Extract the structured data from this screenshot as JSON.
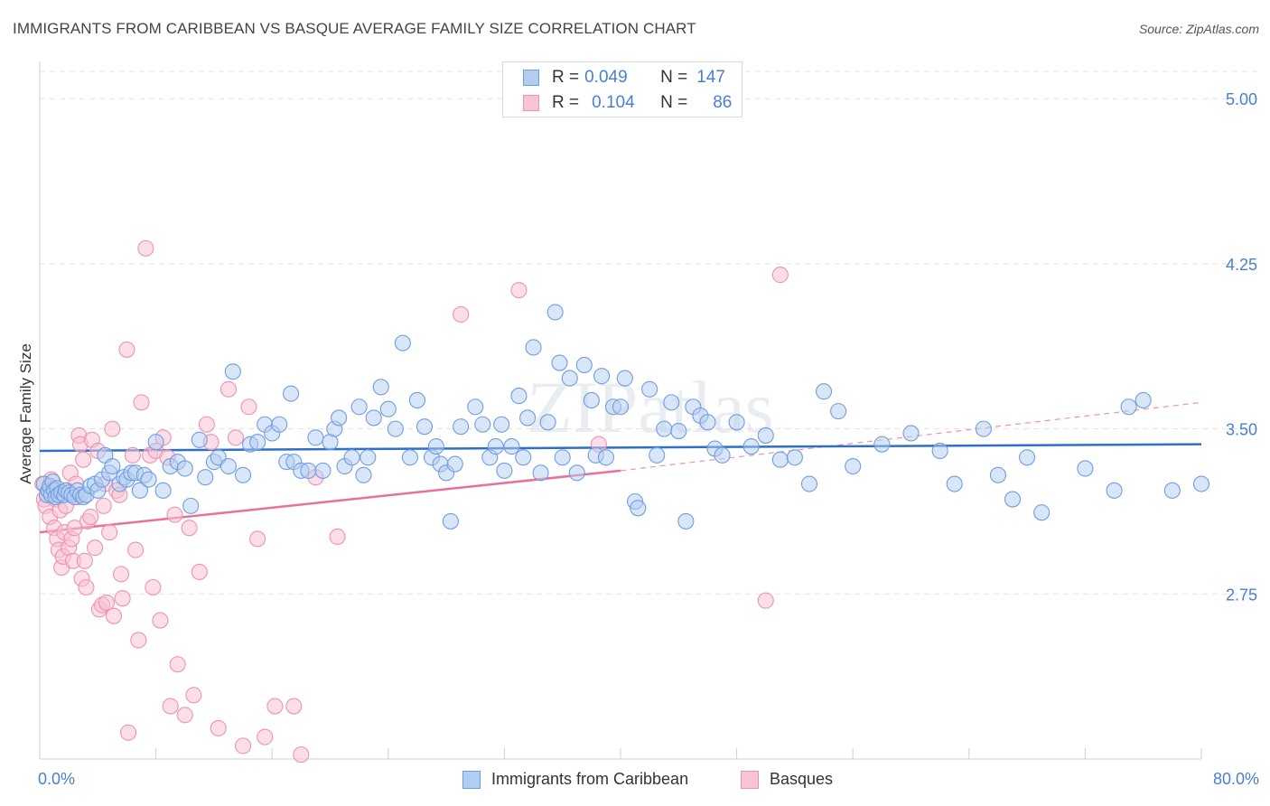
{
  "header": {
    "title": "IMMIGRANTS FROM CARIBBEAN VS BASQUE AVERAGE FAMILY SIZE CORRELATION CHART",
    "source": "Source: ZipAtlas.com"
  },
  "watermark": "ZIPatlas",
  "stats_legend": {
    "rows": [
      {
        "r_label": "R =",
        "r_value": "0.049",
        "n_label": "N =",
        "n_value": "147"
      },
      {
        "r_label": "R =",
        "r_value": "0.104",
        "n_label": "N =",
        "n_value": "86"
      }
    ]
  },
  "colors": {
    "blue_fill": "#b3cdf2",
    "blue_stroke": "#6f9ee0",
    "blue_line": "#2f6fcc",
    "pink_fill": "#f8c3d4",
    "pink_stroke": "#ee92b1",
    "pink_line": "#e8709a",
    "tick_label": "#4a7fd0",
    "grid": "#e3e3e3"
  },
  "chart_data": {
    "type": "scatter",
    "title": "IMMIGRANTS FROM CARIBBEAN VS BASQUE AVERAGE FAMILY SIZE CORRELATION CHART",
    "xlabel": "",
    "ylabel": "Average Family Size",
    "xlim": [
      0,
      80
    ],
    "ylim": [
      2.0,
      5.12
    ],
    "x_tick_labels": [
      "0.0%",
      "80.0%"
    ],
    "y_ticks": [
      2.75,
      3.5,
      4.25,
      5.0
    ],
    "y_tick_labels": [
      "2.75",
      "3.50",
      "4.25",
      "5.00"
    ],
    "grid": "horizontal dashed",
    "legend_position": "bottom-center",
    "series": [
      {
        "name": "Immigrants from Caribbean",
        "color": "#6f9ee0",
        "trend": {
          "x": [
            0,
            80
          ],
          "y": [
            3.4,
            3.43
          ]
        },
        "points": [
          [
            0.3,
            3.25
          ],
          [
            0.5,
            3.2
          ],
          [
            0.6,
            3.22
          ],
          [
            0.7,
            3.24
          ],
          [
            0.8,
            3.2
          ],
          [
            0.9,
            3.26
          ],
          [
            1.0,
            3.22
          ],
          [
            1.1,
            3.19
          ],
          [
            1.2,
            3.23
          ],
          [
            1.3,
            3.2
          ],
          [
            1.5,
            3.21
          ],
          [
            1.7,
            3.2
          ],
          [
            1.8,
            3.22
          ],
          [
            2.0,
            3.21
          ],
          [
            2.2,
            3.2
          ],
          [
            2.4,
            3.19
          ],
          [
            2.6,
            3.22
          ],
          [
            2.8,
            3.2
          ],
          [
            3.0,
            3.19
          ],
          [
            3.2,
            3.2
          ],
          [
            3.5,
            3.24
          ],
          [
            3.8,
            3.25
          ],
          [
            4.0,
            3.22
          ],
          [
            4.3,
            3.27
          ],
          [
            4.5,
            3.38
          ],
          [
            4.8,
            3.3
          ],
          [
            5.0,
            3.33
          ],
          [
            5.5,
            3.25
          ],
          [
            5.8,
            3.28
          ],
          [
            6.0,
            3.27
          ],
          [
            6.3,
            3.3
          ],
          [
            6.6,
            3.3
          ],
          [
            6.9,
            3.22
          ],
          [
            7.2,
            3.29
          ],
          [
            7.5,
            3.27
          ],
          [
            8.0,
            3.44
          ],
          [
            8.5,
            3.22
          ],
          [
            9.0,
            3.33
          ],
          [
            9.5,
            3.35
          ],
          [
            10.0,
            3.32
          ],
          [
            10.4,
            3.15
          ],
          [
            11.0,
            3.45
          ],
          [
            11.4,
            3.28
          ],
          [
            12.0,
            3.35
          ],
          [
            12.3,
            3.37
          ],
          [
            13.0,
            3.33
          ],
          [
            13.3,
            3.76
          ],
          [
            14.0,
            3.29
          ],
          [
            14.5,
            3.43
          ],
          [
            15.0,
            3.44
          ],
          [
            15.5,
            3.52
          ],
          [
            16.0,
            3.48
          ],
          [
            16.5,
            3.52
          ],
          [
            17.0,
            3.35
          ],
          [
            17.3,
            3.66
          ],
          [
            17.5,
            3.35
          ],
          [
            18.0,
            3.31
          ],
          [
            18.5,
            3.31
          ],
          [
            19.0,
            3.46
          ],
          [
            19.5,
            3.31
          ],
          [
            20.0,
            3.44
          ],
          [
            20.3,
            3.5
          ],
          [
            20.6,
            3.55
          ],
          [
            21.0,
            3.33
          ],
          [
            21.5,
            3.37
          ],
          [
            22.0,
            3.6
          ],
          [
            22.3,
            3.29
          ],
          [
            22.6,
            3.37
          ],
          [
            23.0,
            3.55
          ],
          [
            23.5,
            3.69
          ],
          [
            24.0,
            3.59
          ],
          [
            24.5,
            3.5
          ],
          [
            25.0,
            3.89
          ],
          [
            25.5,
            3.37
          ],
          [
            26.0,
            3.63
          ],
          [
            26.5,
            3.51
          ],
          [
            27.0,
            3.37
          ],
          [
            27.3,
            3.42
          ],
          [
            27.6,
            3.34
          ],
          [
            28.0,
            3.3
          ],
          [
            28.3,
            3.08
          ],
          [
            28.6,
            3.34
          ],
          [
            29.0,
            3.51
          ],
          [
            30.0,
            3.6
          ],
          [
            30.5,
            3.52
          ],
          [
            31.0,
            3.37
          ],
          [
            31.4,
            3.42
          ],
          [
            31.8,
            3.52
          ],
          [
            32.0,
            3.31
          ],
          [
            32.5,
            3.42
          ],
          [
            33.0,
            3.65
          ],
          [
            33.3,
            3.37
          ],
          [
            33.6,
            3.55
          ],
          [
            34.0,
            3.87
          ],
          [
            34.5,
            3.3
          ],
          [
            35.0,
            3.53
          ],
          [
            35.5,
            4.03
          ],
          [
            35.8,
            3.8
          ],
          [
            36.0,
            3.37
          ],
          [
            36.5,
            3.73
          ],
          [
            37.0,
            3.3
          ],
          [
            37.5,
            3.79
          ],
          [
            38.0,
            3.63
          ],
          [
            38.3,
            3.38
          ],
          [
            38.7,
            3.74
          ],
          [
            39.0,
            3.37
          ],
          [
            39.5,
            3.6
          ],
          [
            40.0,
            3.6
          ],
          [
            40.3,
            3.73
          ],
          [
            41.0,
            3.17
          ],
          [
            41.2,
            3.14
          ],
          [
            42.0,
            3.68
          ],
          [
            42.5,
            3.38
          ],
          [
            43.0,
            3.5
          ],
          [
            43.5,
            3.62
          ],
          [
            44.0,
            3.49
          ],
          [
            44.5,
            3.08
          ],
          [
            45.0,
            3.6
          ],
          [
            45.5,
            3.56
          ],
          [
            46.0,
            3.53
          ],
          [
            46.5,
            3.41
          ],
          [
            47.0,
            3.38
          ],
          [
            48.0,
            3.53
          ],
          [
            49.0,
            3.42
          ],
          [
            50.0,
            3.47
          ],
          [
            51.0,
            3.36
          ],
          [
            52.0,
            3.37
          ],
          [
            53.0,
            3.25
          ],
          [
            54.0,
            3.67
          ],
          [
            55.0,
            3.58
          ],
          [
            56.0,
            3.33
          ],
          [
            58.0,
            3.43
          ],
          [
            60.0,
            3.48
          ],
          [
            62.0,
            3.4
          ],
          [
            63.0,
            3.25
          ],
          [
            65.0,
            3.5
          ],
          [
            66.0,
            3.29
          ],
          [
            67.0,
            3.18
          ],
          [
            68.0,
            3.37
          ],
          [
            69.0,
            3.12
          ],
          [
            72.0,
            3.32
          ],
          [
            74.0,
            3.22
          ],
          [
            75.0,
            3.6
          ],
          [
            76.0,
            3.63
          ],
          [
            78.0,
            3.22
          ],
          [
            80.0,
            3.25
          ]
        ]
      },
      {
        "name": "Basques",
        "color": "#ee92b1",
        "trend": {
          "x": [
            0,
            40
          ],
          "y": [
            3.03,
            3.31
          ]
        },
        "trend_extension": {
          "x": [
            40,
            80
          ],
          "y": [
            3.31,
            3.62
          ]
        },
        "points": [
          [
            0.2,
            3.25
          ],
          [
            0.3,
            3.18
          ],
          [
            0.4,
            3.15
          ],
          [
            0.5,
            3.2
          ],
          [
            0.6,
            3.22
          ],
          [
            0.7,
            3.1
          ],
          [
            0.8,
            3.27
          ],
          [
            0.9,
            3.23
          ],
          [
            1.0,
            3.05
          ],
          [
            1.1,
            3.18
          ],
          [
            1.2,
            3.0
          ],
          [
            1.3,
            2.95
          ],
          [
            1.4,
            3.13
          ],
          [
            1.5,
            2.87
          ],
          [
            1.6,
            2.92
          ],
          [
            1.7,
            3.03
          ],
          [
            1.8,
            3.15
          ],
          [
            1.9,
            3.22
          ],
          [
            2.0,
            2.96
          ],
          [
            2.1,
            3.3
          ],
          [
            2.2,
            3.0
          ],
          [
            2.3,
            2.9
          ],
          [
            2.4,
            3.05
          ],
          [
            2.5,
            3.25
          ],
          [
            2.6,
            3.19
          ],
          [
            2.7,
            3.47
          ],
          [
            2.8,
            3.43
          ],
          [
            2.9,
            2.82
          ],
          [
            3.0,
            3.36
          ],
          [
            3.1,
            2.9
          ],
          [
            3.2,
            2.78
          ],
          [
            3.3,
            3.08
          ],
          [
            3.5,
            3.1
          ],
          [
            3.6,
            3.45
          ],
          [
            3.8,
            2.96
          ],
          [
            4.0,
            3.4
          ],
          [
            4.1,
            2.68
          ],
          [
            4.3,
            2.7
          ],
          [
            4.4,
            3.15
          ],
          [
            4.5,
            3.25
          ],
          [
            4.6,
            2.71
          ],
          [
            4.8,
            3.03
          ],
          [
            5.0,
            3.5
          ],
          [
            5.1,
            2.65
          ],
          [
            5.3,
            3.22
          ],
          [
            5.5,
            3.2
          ],
          [
            5.6,
            2.84
          ],
          [
            5.7,
            2.73
          ],
          [
            6.0,
            3.86
          ],
          [
            6.1,
            2.12
          ],
          [
            6.4,
            3.38
          ],
          [
            6.6,
            2.95
          ],
          [
            6.8,
            2.54
          ],
          [
            7.0,
            3.62
          ],
          [
            7.3,
            4.32
          ],
          [
            7.6,
            3.38
          ],
          [
            7.8,
            2.78
          ],
          [
            8.0,
            3.4
          ],
          [
            8.3,
            2.63
          ],
          [
            8.5,
            3.46
          ],
          [
            8.8,
            3.37
          ],
          [
            9.0,
            2.24
          ],
          [
            9.3,
            3.11
          ],
          [
            9.5,
            2.43
          ],
          [
            10.0,
            2.2
          ],
          [
            10.3,
            3.05
          ],
          [
            10.6,
            2.29
          ],
          [
            11.0,
            2.85
          ],
          [
            11.5,
            3.52
          ],
          [
            11.8,
            3.44
          ],
          [
            12.3,
            2.14
          ],
          [
            13.0,
            3.68
          ],
          [
            13.5,
            3.46
          ],
          [
            14.0,
            2.06
          ],
          [
            14.4,
            3.6
          ],
          [
            15.0,
            3.0
          ],
          [
            15.5,
            2.1
          ],
          [
            16.2,
            2.24
          ],
          [
            17.5,
            2.24
          ],
          [
            18.0,
            2.02
          ],
          [
            19.0,
            3.28
          ],
          [
            20.5,
            3.01
          ],
          [
            29.0,
            4.02
          ],
          [
            33.0,
            4.13
          ],
          [
            38.5,
            3.43
          ],
          [
            50.0,
            2.72
          ],
          [
            51.0,
            4.2
          ]
        ]
      }
    ]
  },
  "bottom_legend": {
    "items": [
      {
        "label": "Immigrants from Caribbean"
      },
      {
        "label": "Basques"
      }
    ]
  }
}
